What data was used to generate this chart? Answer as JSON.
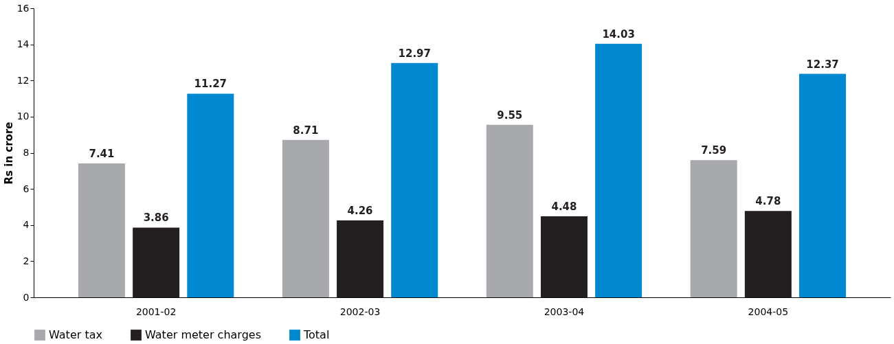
{
  "chart_data": {
    "type": "bar",
    "ylabel": "Rs in crore",
    "categories": [
      "2001-02",
      "2002-03",
      "2003-04",
      "2004-05"
    ],
    "series": [
      {
        "name": "Water tax",
        "color": "#a7a9ac",
        "values": [
          7.41,
          8.71,
          9.55,
          7.59
        ]
      },
      {
        "name": "Water meter charges",
        "color": "#231f20",
        "values": [
          3.86,
          4.26,
          4.48,
          4.78
        ]
      },
      {
        "name": "Total",
        "color": "#0089d0",
        "values": [
          11.27,
          12.97,
          14.03,
          12.37
        ]
      }
    ],
    "ylim": [
      0,
      16
    ],
    "yticks": [
      0,
      2,
      4,
      6,
      8,
      10,
      12,
      14,
      16
    ],
    "data_labels": true,
    "legend": "bottom",
    "grid": false
  }
}
